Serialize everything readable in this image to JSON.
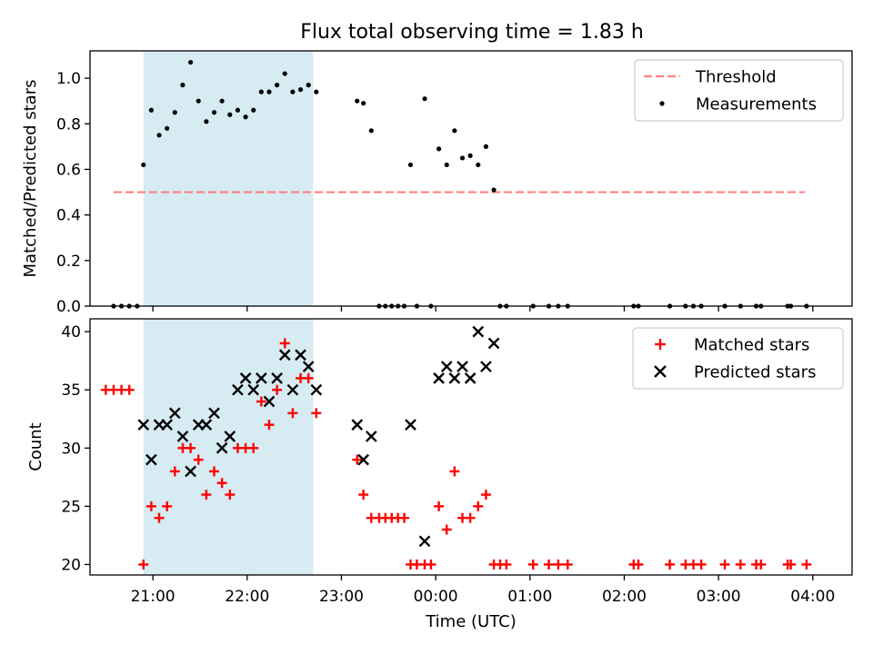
{
  "figure": {
    "title": "Flux total observing time = 1.83 h"
  },
  "chart_data": [
    {
      "type": "scatter",
      "panel": "top",
      "title": "Flux total observing time = 1.83 h",
      "xlabel": "",
      "ylabel": "Matched/Predicted stars",
      "ylim": [
        0,
        1.12
      ],
      "yticks": [
        "0.0",
        "0.2",
        "0.4",
        "0.6",
        "0.8",
        "1.0"
      ],
      "ytick_values": [
        0,
        0.2,
        0.4,
        0.6,
        0.8,
        1.0
      ],
      "highlight_span": [
        "20:54",
        "22:42"
      ],
      "highlight_color": "#add8e6",
      "legend_position": "top-right",
      "threshold": {
        "name": "Threshold",
        "value": 0.5,
        "x_range": [
          "20:35",
          "03:55"
        ],
        "color": "#ff7f7f",
        "style": "dashed"
      },
      "series": [
        {
          "name": "Measurements",
          "marker": "dot",
          "color": "#000000",
          "points": [
            [
              "20:35",
              0.0
            ],
            [
              "20:40",
              0.0
            ],
            [
              "20:45",
              0.0
            ],
            [
              "20:50",
              0.0
            ],
            [
              "20:54",
              0.62
            ],
            [
              "20:59",
              0.86
            ],
            [
              "21:04",
              0.75
            ],
            [
              "21:09",
              0.78
            ],
            [
              "21:14",
              0.85
            ],
            [
              "21:19",
              0.97
            ],
            [
              "21:24",
              1.07
            ],
            [
              "21:29",
              0.9
            ],
            [
              "21:34",
              0.81
            ],
            [
              "21:39",
              0.85
            ],
            [
              "21:44",
              0.9
            ],
            [
              "21:49",
              0.84
            ],
            [
              "21:54",
              0.86
            ],
            [
              "21:59",
              0.83
            ],
            [
              "22:04",
              0.86
            ],
            [
              "22:09",
              0.94
            ],
            [
              "22:14",
              0.94
            ],
            [
              "22:19",
              0.97
            ],
            [
              "22:24",
              1.02
            ],
            [
              "22:29",
              0.94
            ],
            [
              "22:34",
              0.95
            ],
            [
              "22:39",
              0.97
            ],
            [
              "22:44",
              0.94
            ],
            [
              "23:10",
              0.9
            ],
            [
              "23:14",
              0.89
            ],
            [
              "23:19",
              0.77
            ],
            [
              "23:24",
              0.0
            ],
            [
              "23:28",
              0.0
            ],
            [
              "23:32",
              0.0
            ],
            [
              "23:36",
              0.0
            ],
            [
              "23:40",
              0.0
            ],
            [
              "23:44",
              0.62
            ],
            [
              "23:48",
              0.0
            ],
            [
              "23:53",
              0.91
            ],
            [
              "23:57",
              0.0
            ],
            [
              "00:02",
              0.69
            ],
            [
              "00:07",
              0.62
            ],
            [
              "00:12",
              0.77
            ],
            [
              "00:17",
              0.65
            ],
            [
              "00:22",
              0.66
            ],
            [
              "00:27",
              0.62
            ],
            [
              "00:32",
              0.7
            ],
            [
              "00:37",
              0.51
            ],
            [
              "00:41",
              0.0
            ],
            [
              "00:45",
              0.0
            ],
            [
              "01:02",
              0.0
            ],
            [
              "01:12",
              0.0
            ],
            [
              "01:18",
              0.0
            ],
            [
              "01:24",
              0.0
            ],
            [
              "02:06",
              0.0
            ],
            [
              "02:09",
              0.0
            ],
            [
              "02:29",
              0.0
            ],
            [
              "02:39",
              0.0
            ],
            [
              "02:44",
              0.0
            ],
            [
              "02:49",
              0.0
            ],
            [
              "03:04",
              0.0
            ],
            [
              "03:14",
              0.0
            ],
            [
              "03:24",
              0.0
            ],
            [
              "03:27",
              0.0
            ],
            [
              "03:44",
              0.0
            ],
            [
              "03:46",
              0.0
            ],
            [
              "03:56",
              0.0
            ]
          ]
        }
      ]
    },
    {
      "type": "scatter",
      "panel": "bottom",
      "title": "",
      "xlabel": "Time (UTC)",
      "ylabel": "Count",
      "ylim": [
        19.1,
        41.1
      ],
      "yticks": [
        "20",
        "25",
        "30",
        "35",
        "40"
      ],
      "ytick_values": [
        20,
        25,
        30,
        35,
        40
      ],
      "xlim": [
        "20:20",
        "04:25"
      ],
      "xticks": [
        "21:00",
        "22:00",
        "23:00",
        "00:00",
        "01:00",
        "02:00",
        "03:00",
        "04:00"
      ],
      "highlight_span": [
        "20:54",
        "22:42"
      ],
      "highlight_color": "#add8e6",
      "legend_position": "top-right",
      "series": [
        {
          "name": "Matched stars",
          "marker": "plus",
          "color": "#ff0000",
          "points": [
            [
              "20:30",
              35
            ],
            [
              "20:35",
              35
            ],
            [
              "20:40",
              35
            ],
            [
              "20:45",
              35
            ],
            [
              "20:54",
              20
            ],
            [
              "20:59",
              25
            ],
            [
              "21:04",
              24
            ],
            [
              "21:09",
              25
            ],
            [
              "21:14",
              28
            ],
            [
              "21:19",
              30
            ],
            [
              "21:24",
              30
            ],
            [
              "21:29",
              29
            ],
            [
              "21:34",
              26
            ],
            [
              "21:39",
              28
            ],
            [
              "21:44",
              27
            ],
            [
              "21:49",
              26
            ],
            [
              "21:54",
              30
            ],
            [
              "21:59",
              30
            ],
            [
              "22:04",
              30
            ],
            [
              "22:09",
              34
            ],
            [
              "22:14",
              32
            ],
            [
              "22:19",
              35
            ],
            [
              "22:24",
              39
            ],
            [
              "22:29",
              33
            ],
            [
              "22:34",
              36
            ],
            [
              "22:39",
              36
            ],
            [
              "22:44",
              33
            ],
            [
              "23:10",
              29
            ],
            [
              "23:14",
              26
            ],
            [
              "23:19",
              24
            ],
            [
              "23:24",
              24
            ],
            [
              "23:28",
              24
            ],
            [
              "23:32",
              24
            ],
            [
              "23:36",
              24
            ],
            [
              "23:40",
              24
            ],
            [
              "23:44",
              20
            ],
            [
              "23:48",
              20
            ],
            [
              "23:53",
              20
            ],
            [
              "23:57",
              20
            ],
            [
              "00:02",
              25
            ],
            [
              "00:07",
              23
            ],
            [
              "00:12",
              28
            ],
            [
              "00:17",
              24
            ],
            [
              "00:22",
              24
            ],
            [
              "00:27",
              25
            ],
            [
              "00:32",
              26
            ],
            [
              "00:37",
              20
            ],
            [
              "00:41",
              20
            ],
            [
              "00:45",
              20
            ],
            [
              "01:02",
              20
            ],
            [
              "01:12",
              20
            ],
            [
              "01:18",
              20
            ],
            [
              "01:24",
              20
            ],
            [
              "02:06",
              20
            ],
            [
              "02:09",
              20
            ],
            [
              "02:29",
              20
            ],
            [
              "02:39",
              20
            ],
            [
              "02:44",
              20
            ],
            [
              "02:49",
              20
            ],
            [
              "03:04",
              20
            ],
            [
              "03:14",
              20
            ],
            [
              "03:24",
              20
            ],
            [
              "03:27",
              20
            ],
            [
              "03:44",
              20
            ],
            [
              "03:46",
              20
            ],
            [
              "03:56",
              20
            ]
          ]
        },
        {
          "name": "Predicted stars",
          "marker": "x",
          "color": "#000000",
          "points": [
            [
              "20:54",
              32
            ],
            [
              "20:59",
              29
            ],
            [
              "21:04",
              32
            ],
            [
              "21:09",
              32
            ],
            [
              "21:14",
              33
            ],
            [
              "21:19",
              31
            ],
            [
              "21:24",
              28
            ],
            [
              "21:29",
              32
            ],
            [
              "21:34",
              32
            ],
            [
              "21:39",
              33
            ],
            [
              "21:44",
              30
            ],
            [
              "21:49",
              31
            ],
            [
              "21:54",
              35
            ],
            [
              "21:59",
              36
            ],
            [
              "22:04",
              35
            ],
            [
              "22:09",
              36
            ],
            [
              "22:14",
              34
            ],
            [
              "22:19",
              36
            ],
            [
              "22:24",
              38
            ],
            [
              "22:29",
              35
            ],
            [
              "22:34",
              38
            ],
            [
              "22:39",
              37
            ],
            [
              "22:44",
              35
            ],
            [
              "23:10",
              32
            ],
            [
              "23:14",
              29
            ],
            [
              "23:19",
              31
            ],
            [
              "23:44",
              32
            ],
            [
              "23:53",
              22
            ],
            [
              "00:02",
              36
            ],
            [
              "00:07",
              37
            ],
            [
              "00:12",
              36
            ],
            [
              "00:17",
              37
            ],
            [
              "00:22",
              36
            ],
            [
              "00:27",
              40
            ],
            [
              "00:32",
              37
            ],
            [
              "00:37",
              39
            ]
          ]
        }
      ]
    }
  ]
}
